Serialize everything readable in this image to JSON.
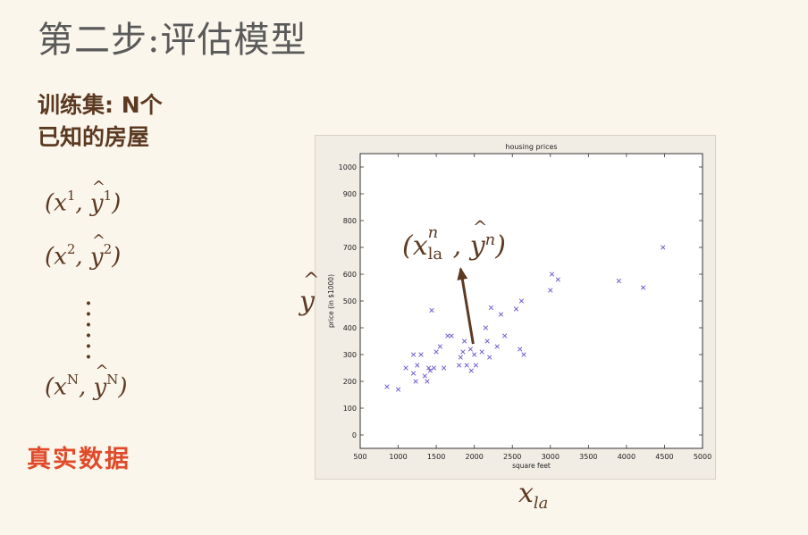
{
  "title": "第二步:评估模型",
  "training_set": {
    "line1": "训练集: N个",
    "line2": "已知的房屋"
  },
  "examples": [
    {
      "x": "x",
      "sup": "1",
      "y": "y",
      "ysup": "1"
    },
    {
      "x": "x",
      "sup": "2",
      "y": "y",
      "ysup": "2"
    },
    {
      "x": "x",
      "sup": "N",
      "y": "y",
      "ysup": "N"
    }
  ],
  "real_data_label": "真实数据",
  "y_hat_label": "y",
  "x_la_label": {
    "base": "x",
    "sub": "la"
  },
  "annotation": {
    "base": "x",
    "sup": "n",
    "sub": "la",
    "y": "y",
    "ysup": "n"
  },
  "chart_data": {
    "type": "scatter",
    "title": "housing prices",
    "xlabel": "square feet",
    "ylabel": "price (in $1000)",
    "xlim": [
      500,
      5000
    ],
    "ylim": [
      -50,
      1050
    ],
    "xticks": [
      500,
      1000,
      1500,
      2000,
      2500,
      3000,
      3500,
      4000,
      4500,
      5000
    ],
    "yticks": [
      0,
      100,
      200,
      300,
      400,
      500,
      600,
      700,
      800,
      900,
      1000
    ],
    "marker": "x",
    "marker_color": "#6a5acd",
    "arrow_color": "#5c3a22",
    "points": [
      [
        852,
        180
      ],
      [
        1000,
        170
      ],
      [
        1100,
        250
      ],
      [
        1200,
        300
      ],
      [
        1200,
        230
      ],
      [
        1230,
        200
      ],
      [
        1250,
        260
      ],
      [
        1300,
        300
      ],
      [
        1350,
        220
      ],
      [
        1380,
        200
      ],
      [
        1400,
        250
      ],
      [
        1420,
        240
      ],
      [
        1440,
        465
      ],
      [
        1470,
        250
      ],
      [
        1500,
        310
      ],
      [
        1550,
        330
      ],
      [
        1600,
        250
      ],
      [
        1650,
        370
      ],
      [
        1700,
        370
      ],
      [
        1800,
        260
      ],
      [
        1820,
        290
      ],
      [
        1850,
        310
      ],
      [
        1870,
        350
      ],
      [
        1900,
        260
      ],
      [
        1950,
        320
      ],
      [
        1960,
        240
      ],
      [
        2000,
        300
      ],
      [
        2020,
        260
      ],
      [
        2100,
        310
      ],
      [
        2150,
        400
      ],
      [
        2170,
        350
      ],
      [
        2200,
        290
      ],
      [
        2220,
        475
      ],
      [
        2300,
        330
      ],
      [
        2350,
        450
      ],
      [
        2400,
        370
      ],
      [
        2550,
        470
      ],
      [
        2600,
        320
      ],
      [
        2620,
        500
      ],
      [
        2650,
        300
      ],
      [
        3000,
        540
      ],
      [
        3020,
        600
      ],
      [
        3100,
        580
      ],
      [
        3900,
        575
      ],
      [
        4220,
        550
      ],
      [
        4480,
        700
      ]
    ],
    "arrow": {
      "from": [
        1985,
        340
      ],
      "to": [
        1820,
        620
      ]
    }
  }
}
